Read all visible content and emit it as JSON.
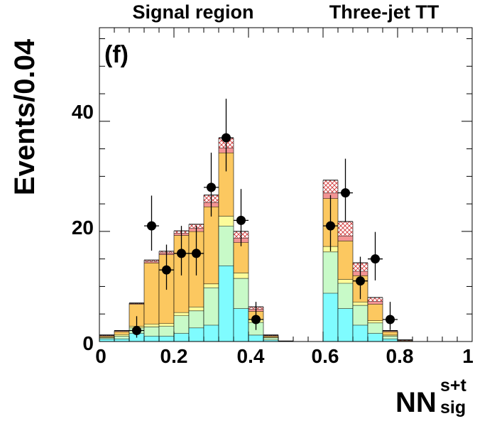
{
  "chart_data": {
    "type": "bar",
    "panel_label": "(f)",
    "region_labels": [
      "Signal region",
      "Three-jet TT"
    ],
    "xlabel": {
      "main": "NN",
      "sup": "s+t",
      "sub": "sig"
    },
    "ylabel": "Events/0.04",
    "xlim": [
      0,
      1
    ],
    "ylim": [
      0,
      57
    ],
    "x_ticks": [
      0,
      0.2,
      0.4,
      0.6,
      0.8,
      1
    ],
    "x_tick_labels": [
      "0",
      "0.2",
      "0.4",
      "0.6",
      "0.8",
      "1"
    ],
    "y_ticks": [
      0,
      20,
      40
    ],
    "y_tick_labels": [
      "0",
      "20",
      "40"
    ],
    "bin_width": 0.04,
    "bins": [
      {
        "x0": 0.0,
        "cyan": 0.5,
        "green": 0.7,
        "yellow": 0.8,
        "orange": 1.0,
        "red": 1.1,
        "hatch": 1.2
      },
      {
        "x0": 0.04,
        "cyan": 0.5,
        "green": 1.0,
        "yellow": 1.3,
        "orange": 1.8,
        "red": 1.9,
        "hatch": 2.0
      },
      {
        "x0": 0.08,
        "cyan": 1.5,
        "green": 2.5,
        "yellow": 2.8,
        "orange": 6.8,
        "red": 6.9,
        "hatch": 7.0
      },
      {
        "x0": 0.12,
        "cyan": 1.0,
        "green": 2.7,
        "yellow": 3.2,
        "orange": 14.3,
        "red": 14.5,
        "hatch": 14.8
      },
      {
        "x0": 0.16,
        "cyan": 1.0,
        "green": 2.8,
        "yellow": 3.3,
        "orange": 15.8,
        "red": 16.1,
        "hatch": 16.4
      },
      {
        "x0": 0.2,
        "cyan": 1.5,
        "green": 4.7,
        "yellow": 5.3,
        "orange": 19.3,
        "red": 19.7,
        "hatch": 20.1
      },
      {
        "x0": 0.24,
        "cyan": 2.5,
        "green": 5.6,
        "yellow": 6.3,
        "orange": 20.0,
        "red": 20.6,
        "hatch": 21.3
      },
      {
        "x0": 0.28,
        "cyan": 3.0,
        "green": 9.8,
        "yellow": 10.5,
        "orange": 24.5,
        "red": 25.3,
        "hatch": 26.6
      },
      {
        "x0": 0.32,
        "cyan": 13.8,
        "green": 21.0,
        "yellow": 22.8,
        "orange": 34.3,
        "red": 35.2,
        "hatch": 37.0
      },
      {
        "x0": 0.36,
        "cyan": 6.0,
        "green": 11.5,
        "yellow": 12.5,
        "orange": 18.0,
        "red": 18.8,
        "hatch": 20.0
      },
      {
        "x0": 0.4,
        "cyan": 1.2,
        "green": 3.5,
        "yellow": 4.0,
        "orange": 5.5,
        "red": 5.9,
        "hatch": 6.3
      },
      {
        "x0": 0.44,
        "cyan": 0.3,
        "green": 0.7,
        "yellow": 0.8,
        "orange": 1.0,
        "red": 1.1,
        "hatch": 1.2
      },
      {
        "x0": 0.48,
        "cyan": 0.0,
        "green": 0.1,
        "yellow": 0.1,
        "orange": 0.1,
        "red": 0.1,
        "hatch": 0.1
      },
      {
        "x0": 0.6,
        "cyan": 8.8,
        "green": 16.3,
        "yellow": 17.3,
        "orange": 26.0,
        "red": 27.0,
        "hatch": 29.3
      },
      {
        "x0": 0.64,
        "cyan": 6.0,
        "green": 10.6,
        "yellow": 11.3,
        "orange": 18.3,
        "red": 19.2,
        "hatch": 21.8
      },
      {
        "x0": 0.68,
        "cyan": 3.0,
        "green": 6.6,
        "yellow": 7.2,
        "orange": 12.0,
        "red": 12.8,
        "hatch": 14.3
      },
      {
        "x0": 0.72,
        "cyan": 1.5,
        "green": 3.4,
        "yellow": 3.8,
        "orange": 6.8,
        "red": 7.3,
        "hatch": 8.0
      },
      {
        "x0": 0.76,
        "cyan": 0.5,
        "green": 1.0,
        "yellow": 1.2,
        "orange": 1.8,
        "red": 1.9,
        "hatch": 2.0
      },
      {
        "x0": 0.8,
        "cyan": 0.0,
        "green": 0.1,
        "yellow": 0.1,
        "orange": 0.2,
        "red": 0.2,
        "hatch": 0.3
      }
    ],
    "data_points": [
      {
        "x": 0.1,
        "y": 2,
        "err_lo": 1.3,
        "err_hi": 2.6
      },
      {
        "x": 0.14,
        "y": 21,
        "err_lo": 4.5,
        "err_hi": 5.5
      },
      {
        "x": 0.18,
        "y": 13,
        "err_lo": 3.6,
        "err_hi": 4.6
      },
      {
        "x": 0.22,
        "y": 16,
        "err_lo": 4.0,
        "err_hi": 5.0
      },
      {
        "x": 0.26,
        "y": 16,
        "err_lo": 4.0,
        "err_hi": 5.0
      },
      {
        "x": 0.3,
        "y": 28,
        "err_lo": 5.3,
        "err_hi": 6.3
      },
      {
        "x": 0.34,
        "y": 37,
        "err_lo": 6.1,
        "err_hi": 7.1
      },
      {
        "x": 0.38,
        "y": 22,
        "err_lo": 4.7,
        "err_hi": 5.7
      },
      {
        "x": 0.42,
        "y": 4,
        "err_lo": 1.9,
        "err_hi": 3.2
      },
      {
        "x": 0.62,
        "y": 21,
        "err_lo": 4.6,
        "err_hi": 5.6
      },
      {
        "x": 0.66,
        "y": 27,
        "err_lo": 5.2,
        "err_hi": 6.2
      },
      {
        "x": 0.7,
        "y": 11,
        "err_lo": 3.3,
        "err_hi": 4.4
      },
      {
        "x": 0.74,
        "y": 15,
        "err_lo": 3.9,
        "err_hi": 4.9
      },
      {
        "x": 0.78,
        "y": 4,
        "err_lo": 1.9,
        "err_hi": 3.2
      }
    ],
    "colors": {
      "cyan": "#7ffcff",
      "green": "#c8fac8",
      "yellow": "#fcfc9a",
      "orange": "#fcc860",
      "red": "#f39494",
      "hatch": "#d03838",
      "points": "#000000"
    }
  }
}
